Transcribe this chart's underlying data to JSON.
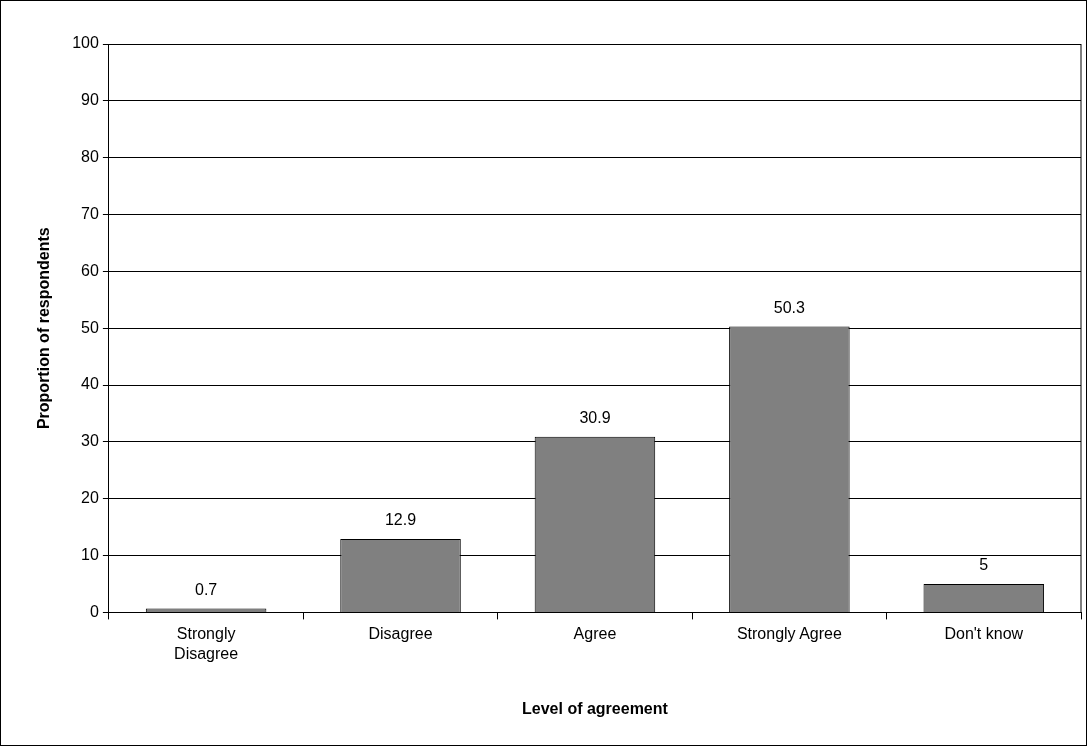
{
  "chart_data": {
    "type": "bar",
    "xlabel": "Level of agreement",
    "ylabel": "Proportion of respondents",
    "categories": [
      "Strongly Disagree",
      "Disagree",
      "Agree",
      "Strongly Agree",
      "Don't know"
    ],
    "values": [
      0.7,
      12.9,
      30.9,
      50.3,
      5
    ],
    "color": "#808080",
    "ylim": [
      0,
      100
    ],
    "yticks": [
      0,
      10,
      20,
      30,
      40,
      50,
      60,
      70,
      80,
      90,
      100
    ],
    "grid": "y",
    "legend": false,
    "data_labels": true
  }
}
